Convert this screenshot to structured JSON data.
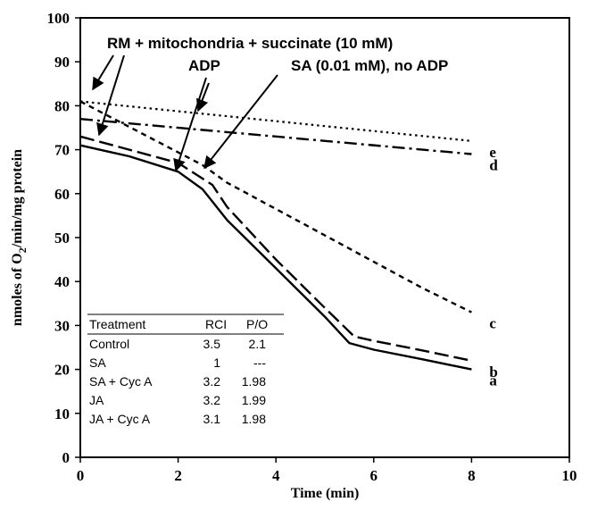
{
  "chart_data": {
    "type": "line",
    "xlabel": "Time (min)",
    "ylabel": "nmoles of O2/min/mg protein",
    "ylabel_parts": {
      "pre": "nmoles of O",
      "sub": "2",
      "post": "/min/mg protein"
    },
    "xlim": [
      0,
      10
    ],
    "ylim": [
      0,
      100
    ],
    "xticks": [
      "0",
      "2",
      "4",
      "6",
      "8",
      "10"
    ],
    "yticks": [
      "0",
      "10",
      "20",
      "30",
      "40",
      "50",
      "60",
      "70",
      "80",
      "90",
      "100"
    ],
    "grid": false,
    "series": [
      {
        "name": "a",
        "style": "solid",
        "points": [
          [
            0,
            71
          ],
          [
            1,
            68.5
          ],
          [
            2,
            65
          ],
          [
            2.5,
            61
          ],
          [
            3,
            54
          ],
          [
            4,
            43
          ],
          [
            5,
            32
          ],
          [
            5.5,
            26
          ],
          [
            6,
            24.5
          ],
          [
            7,
            22.3
          ],
          [
            8,
            20
          ]
        ]
      },
      {
        "name": "b",
        "style": "dashed",
        "points": [
          [
            0,
            73
          ],
          [
            1,
            70
          ],
          [
            2,
            67
          ],
          [
            2.7,
            62
          ],
          [
            3,
            57
          ],
          [
            4,
            45
          ],
          [
            5,
            34
          ],
          [
            5.6,
            27.5
          ],
          [
            6,
            26.5
          ],
          [
            7,
            24.3
          ],
          [
            8,
            22
          ]
        ]
      },
      {
        "name": "c",
        "style": "short-dash",
        "points": [
          [
            0,
            81
          ],
          [
            2.5,
            66.5
          ],
          [
            3,
            62.5
          ],
          [
            4,
            56.5
          ],
          [
            5,
            50.5
          ],
          [
            6,
            44.5
          ],
          [
            7,
            38.5
          ],
          [
            8,
            33
          ]
        ]
      },
      {
        "name": "d",
        "style": "dash-dot",
        "points": [
          [
            0,
            77
          ],
          [
            8,
            69
          ]
        ]
      },
      {
        "name": "e",
        "style": "dotted",
        "points": [
          [
            0,
            81
          ],
          [
            8,
            72
          ]
        ]
      }
    ],
    "annotations": [
      {
        "text": "RM + mitochondria + succinate (10 mM)",
        "arrows": [
          [
            0.05,
            81
          ],
          [
            0.3,
            72.5
          ]
        ]
      },
      {
        "text": "ADP",
        "arrows": [
          [
            1.97,
            65
          ]
        ]
      },
      {
        "text": "SA (0.01 mM), no ADP",
        "arrows": [
          [
            2.55,
            65.5
          ]
        ]
      }
    ],
    "table": {
      "headers": [
        "Treatment",
        "RCI",
        "P/O"
      ],
      "rows": [
        [
          "Control",
          "3.5",
          "2.1"
        ],
        [
          "SA",
          "1",
          "---"
        ],
        [
          "SA + Cyc A",
          "3.2",
          "1.98"
        ],
        [
          "JA",
          "3.2",
          "1.99"
        ],
        [
          "JA + Cyc A",
          "3.1",
          "1.98"
        ]
      ]
    }
  }
}
